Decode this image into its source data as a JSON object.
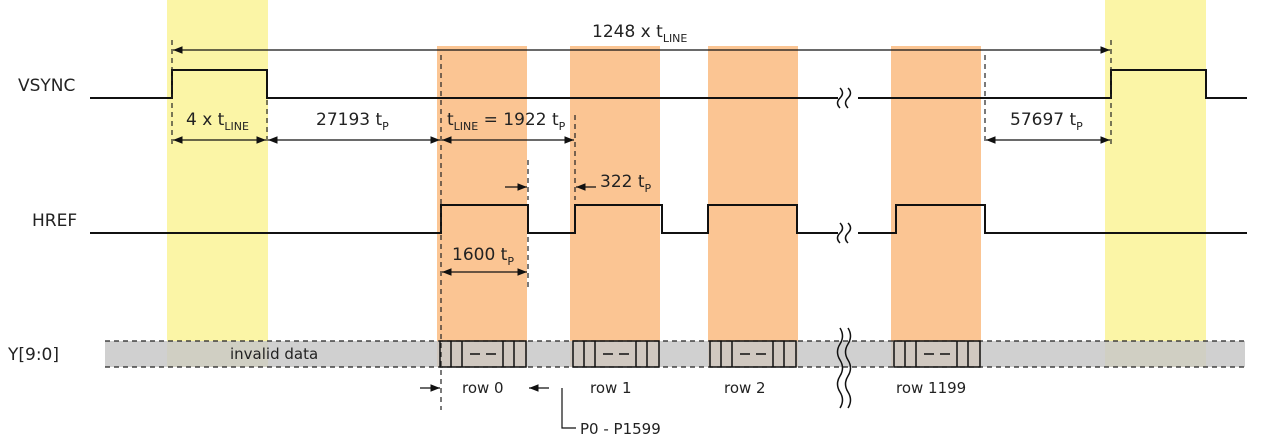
{
  "signals": {
    "vsync": "VSYNC",
    "href": "HREF",
    "y": "Y[9:0]"
  },
  "annotations": {
    "frame": {
      "main": "1248 x t",
      "sub": "LINE"
    },
    "vsync_width": {
      "main": "4 x t",
      "sub": "LINE"
    },
    "front_porch": {
      "main": "27193 t",
      "sub": "P"
    },
    "tline": {
      "a": "t",
      "a_sub": "LINE",
      "b": " = 1922 t",
      "b_sub": "P"
    },
    "href_gap": {
      "main": "322 t",
      "sub": "P"
    },
    "href_active": {
      "main": "1600 t",
      "sub": "P"
    },
    "back_porch": {
      "main": "57697 t",
      "sub": "P"
    }
  },
  "data_labels": {
    "invalid": "invalid data",
    "rows": [
      "row 0",
      "row 1",
      "row 2",
      "row 1199"
    ],
    "pixels": "P0 - P1599"
  },
  "colors": {
    "vsync_highlight": "#fbf5a6",
    "href_highlight": "#fbc593",
    "data_bus": "#c8c8c8"
  }
}
